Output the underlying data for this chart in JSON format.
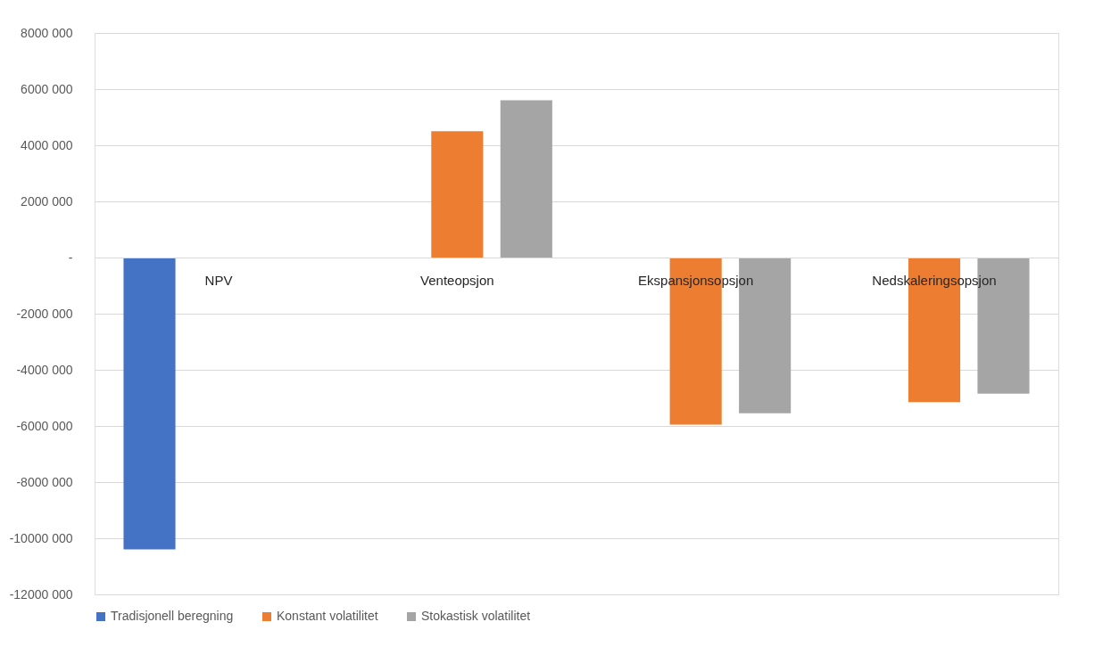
{
  "chart_data": {
    "type": "bar",
    "categories": [
      "NPV",
      "Venteopsjon",
      "Ekspansjonsopsjon",
      "Nedskaleringsopsjon"
    ],
    "series": [
      {
        "name": "Tradisjonell beregning",
        "color": "#4472c4",
        "values": [
          -10400000,
          null,
          null,
          null
        ]
      },
      {
        "name": "Konstant volatilitet",
        "color": "#ed7d31",
        "values": [
          null,
          4500000,
          -5950000,
          -5150000
        ]
      },
      {
        "name": "Stokastisk volatilitet",
        "color": "#a5a5a5",
        "values": [
          null,
          5600000,
          -5550000,
          -4850000
        ]
      }
    ],
    "ylim": [
      -12000000,
      8000000
    ],
    "yticks": [
      {
        "value": 8000000,
        "label": "8000 000"
      },
      {
        "value": 6000000,
        "label": "6000 000"
      },
      {
        "value": 4000000,
        "label": "4000 000"
      },
      {
        "value": 2000000,
        "label": "2000 000"
      },
      {
        "value": 0,
        "label": "-"
      },
      {
        "value": -2000000,
        "label": "-2000 000"
      },
      {
        "value": -4000000,
        "label": "-4000 000"
      },
      {
        "value": -6000000,
        "label": "-6000 000"
      },
      {
        "value": -8000000,
        "label": "-8000 000"
      },
      {
        "value": -10000000,
        "label": "-10000 000"
      },
      {
        "value": -12000000,
        "label": "-12000 000"
      }
    ],
    "grid": "y",
    "legend": "bottom"
  }
}
